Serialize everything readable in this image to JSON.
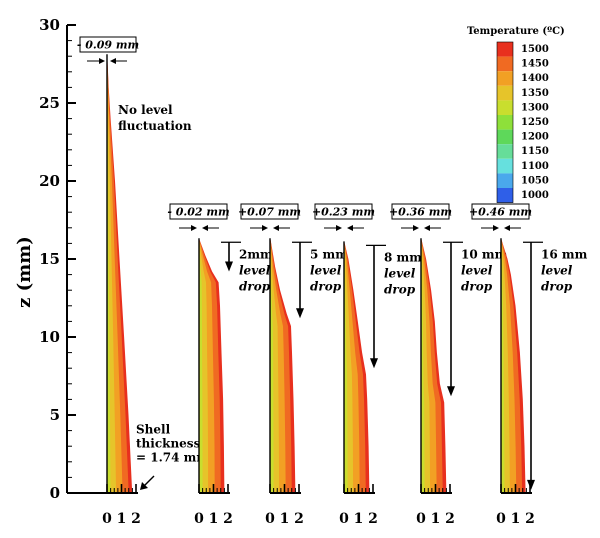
{
  "chart_data": {
    "type": "area",
    "ylabel": "z (mm)",
    "ylim": [
      0,
      30
    ],
    "yticks": [
      0,
      5,
      10,
      15,
      20,
      25,
      30
    ],
    "xticks": [
      0,
      1,
      2
    ],
    "legend": {
      "title": "Temperature (ºC)",
      "placement": "top-right",
      "levels": [
        1500,
        1450,
        1400,
        1350,
        1300,
        1250,
        1200,
        1150,
        1100,
        1050,
        1000
      ],
      "colors": [
        "#e8301e",
        "#f06a22",
        "#f2a024",
        "#e6c42a",
        "#c9de2e",
        "#8ee03a",
        "#5ed85a",
        "#66dd99",
        "#66e0de",
        "#4aa8ec",
        "#2f5fe8"
      ]
    },
    "series": [
      {
        "annotation": "- 0.09 mm",
        "top_mm": 28,
        "drop_mm": 0,
        "note_lines": [
          "No level",
          "fluctuation"
        ],
        "bottom_note": [
          "Shell",
          "thickness",
          "= 1.74 mm"
        ],
        "profile": [
          [
            0,
            1.74
          ],
          [
            5,
            1.48
          ],
          [
            10,
            1.18
          ],
          [
            15,
            0.86
          ],
          [
            20,
            0.55
          ],
          [
            24,
            0.25
          ],
          [
            26,
            0.12
          ],
          [
            28,
            0.02
          ]
        ]
      },
      {
        "annotation": "- 0.02 mm",
        "top_mm": 16.2,
        "drop_mm": 2,
        "note_lines": [
          "2mm",
          "level",
          "drop"
        ],
        "profile": [
          [
            0,
            1.75
          ],
          [
            3,
            1.72
          ],
          [
            6,
            1.66
          ],
          [
            9,
            1.55
          ],
          [
            12,
            1.45
          ],
          [
            13.5,
            1.35
          ],
          [
            14.2,
            0.9
          ],
          [
            15.2,
            0.45
          ],
          [
            16.2,
            0.05
          ]
        ]
      },
      {
        "annotation": "+0.07 mm",
        "top_mm": 16.2,
        "drop_mm": 5,
        "note_lines": [
          "5 mm",
          "level",
          "drop"
        ],
        "profile": [
          [
            0,
            1.75
          ],
          [
            3,
            1.7
          ],
          [
            6,
            1.62
          ],
          [
            9,
            1.52
          ],
          [
            10.7,
            1.45
          ],
          [
            11.5,
            1.15
          ],
          [
            13,
            0.7
          ],
          [
            14.5,
            0.35
          ],
          [
            16.2,
            0.05
          ]
        ]
      },
      {
        "annotation": "+0.23 mm",
        "top_mm": 16,
        "drop_mm": 8,
        "note_lines": [
          "8 mm",
          "level",
          "drop"
        ],
        "profile": [
          [
            0,
            1.75
          ],
          [
            3,
            1.7
          ],
          [
            6,
            1.6
          ],
          [
            7.6,
            1.52
          ],
          [
            9,
            1.25
          ],
          [
            11,
            0.95
          ],
          [
            13,
            0.65
          ],
          [
            15,
            0.3
          ],
          [
            16,
            0.05
          ]
        ]
      },
      {
        "annotation": "+0.36 mm",
        "top_mm": 16.2,
        "drop_mm": 10,
        "note_lines": [
          "10 mm",
          "level",
          "drop"
        ],
        "profile": [
          [
            0,
            1.75
          ],
          [
            3,
            1.68
          ],
          [
            5.8,
            1.6
          ],
          [
            7,
            1.3
          ],
          [
            9,
            1.1
          ],
          [
            11,
            0.95
          ],
          [
            13,
            0.7
          ],
          [
            15,
            0.35
          ],
          [
            16.2,
            0.05
          ]
        ]
      },
      {
        "annotation": "+0.46 mm",
        "top_mm": 16.2,
        "drop_mm": 16,
        "note_lines": [
          "16 mm",
          "level",
          "drop"
        ],
        "profile": [
          [
            0,
            1.7
          ],
          [
            3,
            1.62
          ],
          [
            6,
            1.5
          ],
          [
            9,
            1.3
          ],
          [
            12,
            1.0
          ],
          [
            14,
            0.68
          ],
          [
            15,
            0.45
          ],
          [
            16.2,
            0.05
          ]
        ]
      }
    ]
  }
}
